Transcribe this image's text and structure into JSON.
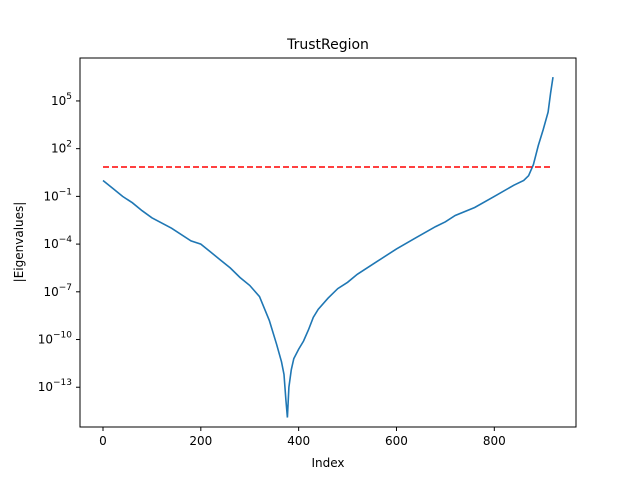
{
  "chart_data": {
    "type": "line",
    "title": "TrustRegion",
    "xlabel": "Index",
    "ylabel": "|Eigenvalues|",
    "yscale": "log",
    "xlim": [
      -47,
      967
    ],
    "ylim_log10": [
      -15.5,
      7.7
    ],
    "x_ticks": [
      0,
      200,
      400,
      600,
      800
    ],
    "y_ticks_exp": [
      -13,
      -10,
      -7,
      -4,
      -1,
      2,
      5
    ],
    "y_tick_base": "10",
    "grid": false,
    "series": [
      {
        "style": "solid",
        "color": "#1f77b4",
        "points": [
          [
            0,
            0.0
          ],
          [
            20,
            -0.5
          ],
          [
            40,
            -1.0
          ],
          [
            60,
            -1.4
          ],
          [
            80,
            -1.9
          ],
          [
            100,
            -2.35
          ],
          [
            140,
            -3.0
          ],
          [
            180,
            -3.8
          ],
          [
            200,
            -4.0
          ],
          [
            220,
            -4.5
          ],
          [
            240,
            -5.0
          ],
          [
            260,
            -5.5
          ],
          [
            280,
            -6.1
          ],
          [
            300,
            -6.6
          ],
          [
            320,
            -7.3
          ],
          [
            340,
            -8.8
          ],
          [
            355,
            -10.3
          ],
          [
            365,
            -11.4
          ],
          [
            370,
            -12.2
          ],
          [
            374,
            -13.8
          ],
          [
            377,
            -14.9
          ],
          [
            380,
            -13.0
          ],
          [
            385,
            -11.9
          ],
          [
            390,
            -11.2
          ],
          [
            400,
            -10.6
          ],
          [
            410,
            -10.1
          ],
          [
            420,
            -9.4
          ],
          [
            430,
            -8.6
          ],
          [
            440,
            -8.1
          ],
          [
            460,
            -7.4
          ],
          [
            480,
            -6.8
          ],
          [
            500,
            -6.4
          ],
          [
            520,
            -5.9
          ],
          [
            560,
            -5.1
          ],
          [
            600,
            -4.3
          ],
          [
            640,
            -3.6
          ],
          [
            680,
            -2.9
          ],
          [
            700,
            -2.6
          ],
          [
            720,
            -2.2
          ],
          [
            760,
            -1.7
          ],
          [
            800,
            -1.0
          ],
          [
            840,
            -0.3
          ],
          [
            860,
            0.0
          ],
          [
            870,
            0.3
          ],
          [
            880,
            1.0
          ],
          [
            890,
            2.2
          ],
          [
            900,
            3.2
          ],
          [
            910,
            4.3
          ],
          [
            915,
            5.5
          ],
          [
            920,
            6.5
          ]
        ]
      },
      {
        "style": "dashed",
        "color": "#ff0000",
        "points": [
          [
            0,
            0.85
          ],
          [
            920,
            0.85
          ]
        ]
      }
    ]
  }
}
